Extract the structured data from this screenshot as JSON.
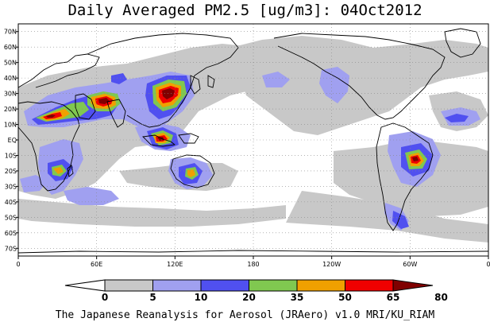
{
  "title": "Daily Averaged PM2.5 [ug/m3]: 04Oct2012",
  "footer": "The Japanese Reanalysis for Aerosol (JRAero) v1.0 MRI/KU_RIAM",
  "map": {
    "projection": "equirectangular",
    "lon_range": [
      0,
      360
    ],
    "lat_range": [
      -75,
      75
    ],
    "grid": "dotted",
    "x_tick_labels": [
      "0",
      "60E",
      "120E",
      "180",
      "120W",
      "60W",
      "0"
    ],
    "y_tick_labels": [
      "70N",
      "60N",
      "50N",
      "40N",
      "30N",
      "20N",
      "10N",
      "EQ",
      "10S",
      "20S",
      "30S",
      "40S",
      "50S",
      "60S",
      "70S"
    ]
  },
  "colorbar": {
    "levels": [
      "0",
      "5",
      "10",
      "20",
      "35",
      "50",
      "65",
      "80"
    ],
    "colors": [
      "#ffffff",
      "#c8c8c8",
      "#a0a0f0",
      "#5050f0",
      "#80c850",
      "#f0a000",
      "#f00000",
      "#800000"
    ]
  }
}
